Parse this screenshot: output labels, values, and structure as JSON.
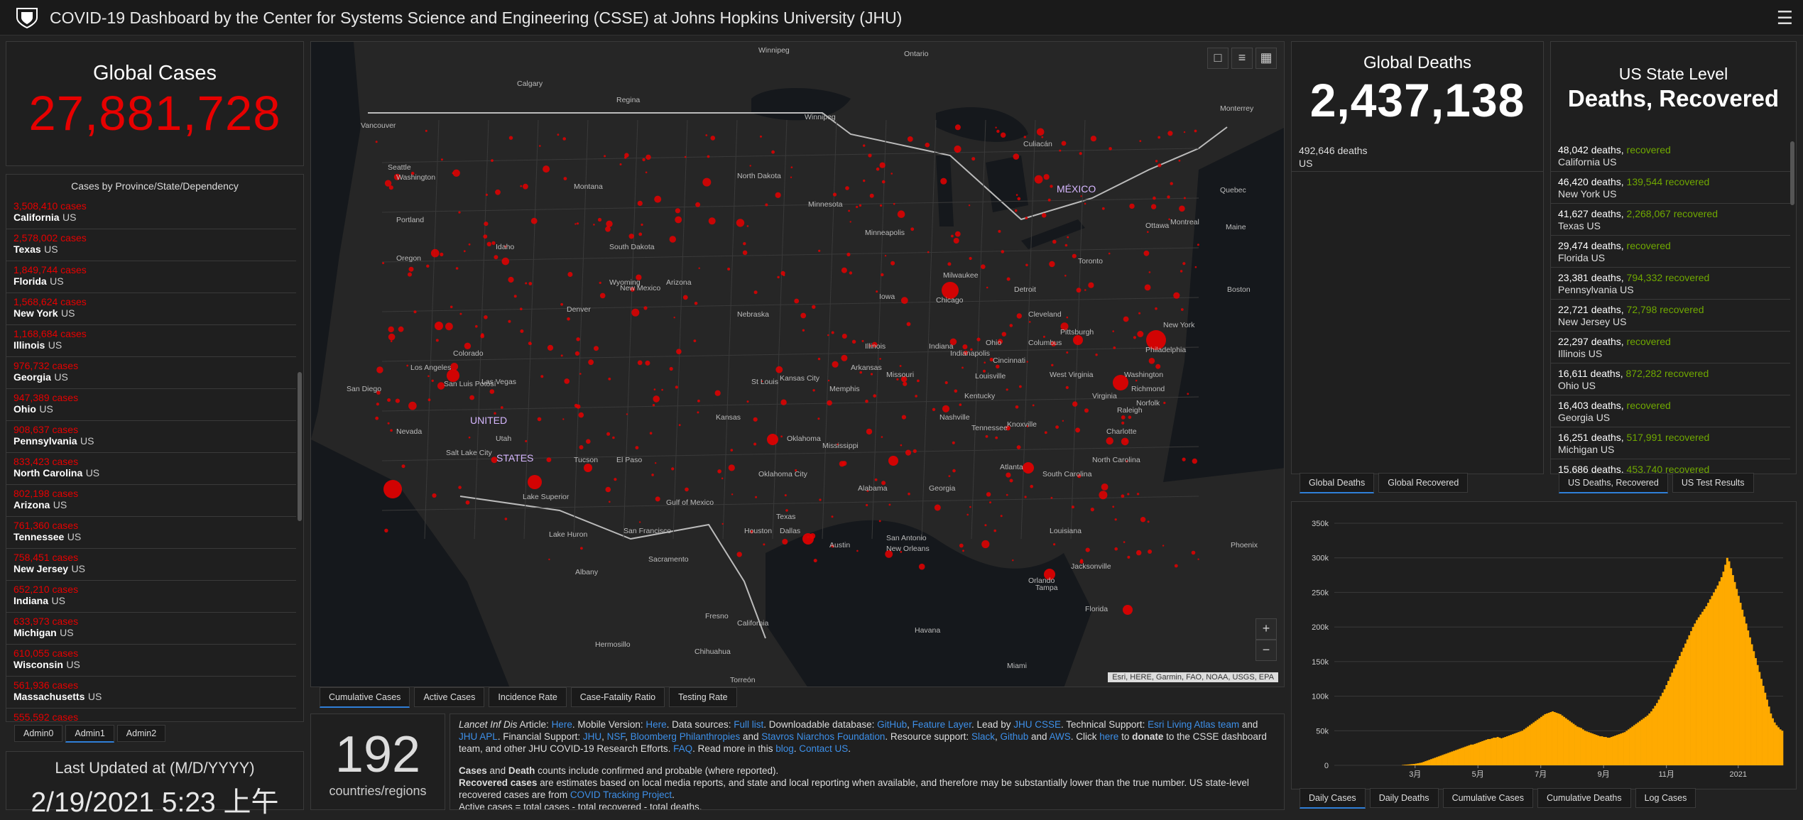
{
  "header": {
    "title": "COVID-19 Dashboard by the Center for Systems Science and Engineering (CSSE) at Johns Hopkins University (JHU)"
  },
  "global_cases": {
    "label": "Global Cases",
    "value": "27,881,728"
  },
  "cases_list": {
    "header": "Cases by Province/State/Dependency",
    "rows": [
      {
        "cases": "3,508,410 cases",
        "place": "California",
        "country": "US"
      },
      {
        "cases": "2,578,002 cases",
        "place": "Texas",
        "country": "US"
      },
      {
        "cases": "1,849,744 cases",
        "place": "Florida",
        "country": "US"
      },
      {
        "cases": "1,568,624 cases",
        "place": "New York",
        "country": "US"
      },
      {
        "cases": "1,168,684 cases",
        "place": "Illinois",
        "country": "US"
      },
      {
        "cases": "976,732 cases",
        "place": "Georgia",
        "country": "US"
      },
      {
        "cases": "947,389 cases",
        "place": "Ohio",
        "country": "US"
      },
      {
        "cases": "908,637 cases",
        "place": "Pennsylvania",
        "country": "US"
      },
      {
        "cases": "833,423 cases",
        "place": "North Carolina",
        "country": "US"
      },
      {
        "cases": "802,198 cases",
        "place": "Arizona",
        "country": "US"
      },
      {
        "cases": "761,360 cases",
        "place": "Tennessee",
        "country": "US"
      },
      {
        "cases": "758,451 cases",
        "place": "New Jersey",
        "country": "US"
      },
      {
        "cases": "652,210 cases",
        "place": "Indiana",
        "country": "US"
      },
      {
        "cases": "633,973 cases",
        "place": "Michigan",
        "country": "US"
      },
      {
        "cases": "610,055 cases",
        "place": "Wisconsin",
        "country": "US"
      },
      {
        "cases": "561,936 cases",
        "place": "Massachusetts",
        "country": "US"
      },
      {
        "cases": "555,592 cases",
        "place": "",
        "country": ""
      }
    ]
  },
  "admin_tabs": [
    "Admin0",
    "Admin1",
    "Admin2"
  ],
  "last_updated": {
    "label": "Last Updated at (M/D/YYYY)",
    "value": "2/19/2021 5:23 上午"
  },
  "map": {
    "tabs": [
      "Cumulative Cases",
      "Active Cases",
      "Incidence Rate",
      "Case-Fatality Ratio",
      "Testing Rate"
    ],
    "attribution": "Esri, HERE, Garmin, FAO, NOAA, USGS, EPA",
    "zoom_in": "+",
    "zoom_out": "−",
    "labels": [
      "Winnipeg",
      "Ontario",
      "Calgary",
      "Regina",
      "Winnipeg",
      "Vancouver",
      "Seattle",
      "Washington",
      "Portland",
      "Oregon",
      "Idaho",
      "Montana",
      "North Dakota",
      "Minnesota",
      "South Dakota",
      "Wyoming",
      "Nebraska",
      "Iowa",
      "Minneapolis",
      "Milwaukee",
      "Chicago",
      "Detroit",
      "Cleveland",
      "Toronto",
      "Ottawa",
      "Montreal",
      "Quebec",
      "Maine",
      "Boston",
      "New York",
      "Philadelphia",
      "Pittsburgh",
      "Washington",
      "Richmond",
      "Norfolk",
      "Virginia",
      "West Virginia",
      "Ohio",
      "Indiana",
      "Illinois",
      "Indianapolis",
      "Cincinnati",
      "Columbus",
      "Kentucky",
      "Louisville",
      "Nashville",
      "Knoxville",
      "Charlotte",
      "Raleigh",
      "Tennessee",
      "North Carolina",
      "South Carolina",
      "Atlanta",
      "Georgia",
      "Alabama",
      "Mississippi",
      "Memphis",
      "Arkansas",
      "Missouri",
      "St Louis",
      "Kansas City",
      "Kansas",
      "Oklahoma",
      "Oklahoma City",
      "Texas",
      "Dallas",
      "Austin",
      "Houston",
      "San Antonio",
      "New Orleans",
      "Louisiana",
      "Jacksonville",
      "Orlando",
      "Tampa",
      "Florida",
      "Miami",
      "Havana",
      "Gulf of Mexico",
      "El Paso",
      "Tucson",
      "Phoenix",
      "Arizona",
      "New Mexico",
      "Denver",
      "Colorado",
      "Utah",
      "Salt Lake City",
      "Nevada",
      "Las Vegas",
      "Los Angeles",
      "San Diego",
      "San Francisco",
      "Sacramento",
      "Fresno",
      "California",
      "Hermosillo",
      "Chihuahua",
      "Torreón",
      "Monterrey",
      "Culiacán",
      "MÉXICO",
      "San Luis Potosí",
      "UNITED",
      "STATES",
      "Lake Superior",
      "Lake Huron",
      "Albany"
    ]
  },
  "country_count": {
    "value": "192",
    "label": "countries/regions"
  },
  "info": {
    "p1": {
      "lancet_prefix": "Lancet Inf Dis",
      "article": " Article: ",
      "here1": "Here",
      "mobile": ". Mobile Version: ",
      "here2": "Here",
      "sources": ". Data sources: ",
      "full_list": "Full list",
      "downloadable": ". Downloadable database: ",
      "github": "GitHub",
      "comma": ", ",
      "feature_layer": "Feature Layer",
      "lead": ". Lead by ",
      "jhu_csse": "JHU CSSE",
      "tech": ". Technical Support: ",
      "esri": "Esri Living Atlas team",
      "and1": " and ",
      "jhu_apl": "JHU APL",
      "fin": ". Financial Support: ",
      "jhu": "JHU",
      "nsf": "NSF",
      "bloomberg": "Bloomberg Philanthropies",
      "and2": " and ",
      "stavros": "Stavros Niarchos Foundation",
      "resource": ". Resource support: ",
      "slack": "Slack",
      "github2": "Github",
      "and3": " and ",
      "aws": "AWS",
      "click": ". Click ",
      "here3": "here",
      "to": " to ",
      "donate": "donate",
      "rest": " to the CSSE dashboard team, and other JHU COVID-19 Research Efforts. ",
      "faq": "FAQ",
      "readmore": ". Read more in this ",
      "blog": "blog",
      "dot": ". ",
      "contact": "Contact US",
      "end": "."
    },
    "p2_cases": "Cases",
    "p2_and": " and ",
    "p2_death": "Death",
    "p2_rest": " counts include confirmed and probable (where reported).",
    "p3_recovered": "Recovered cases",
    "p3_rest": " are estimates based on local media reports, and state and local reporting when available, and therefore may be substantially lower than the true number. US state-level recovered cases are from ",
    "p3_link": "COVID Tracking Project",
    "p3_end": ".",
    "p4": "Active cases = total cases - total recovered - total deaths."
  },
  "global_deaths": {
    "label": "Global Deaths",
    "value": "2,437,138",
    "sub_value": "492,646 deaths",
    "sub_country": "US"
  },
  "death_tabs": [
    "Global Deaths",
    "Global Recovered"
  ],
  "us_state": {
    "title1": "US State Level",
    "title2": "Deaths, Recovered",
    "rows": [
      {
        "deaths": "48,042 deaths,",
        "recovered_value": "",
        "recovered": "recovered",
        "place": "California US"
      },
      {
        "deaths": "46,420 deaths,",
        "recovered_value": "139,544",
        "recovered": "recovered",
        "place": "New York US"
      },
      {
        "deaths": "41,627 deaths,",
        "recovered_value": "2,268,067",
        "recovered": "recovered",
        "place": "Texas US"
      },
      {
        "deaths": "29,474 deaths,",
        "recovered_value": "",
        "recovered": "recovered",
        "place": "Florida US"
      },
      {
        "deaths": "23,381 deaths,",
        "recovered_value": "794,332",
        "recovered": "recovered",
        "place": "Pennsylvania US"
      },
      {
        "deaths": "22,721 deaths,",
        "recovered_value": "72,798",
        "recovered": "recovered",
        "place": "New Jersey US"
      },
      {
        "deaths": "22,297 deaths,",
        "recovered_value": "",
        "recovered": "recovered",
        "place": "Illinois US"
      },
      {
        "deaths": "16,611 deaths,",
        "recovered_value": "872,282",
        "recovered": "recovered",
        "place": "Ohio US"
      },
      {
        "deaths": "16,403 deaths,",
        "recovered_value": "",
        "recovered": "recovered",
        "place": "Georgia US"
      },
      {
        "deaths": "16,251 deaths,",
        "recovered_value": "517,991",
        "recovered": "recovered",
        "place": "Michigan US"
      },
      {
        "deaths": "15,686 deaths,",
        "recovered_value": "453,740",
        "recovered": "recovered",
        "place": ""
      }
    ]
  },
  "us_tabs": [
    "US Deaths, Recovered",
    "US Test Results"
  ],
  "chart_tabs": [
    "Daily Cases",
    "Daily Deaths",
    "Cumulative Cases",
    "Cumulative Deaths",
    "Log Cases"
  ],
  "colors": {
    "cases_red": "#e60000",
    "recovered_green": "#70a800",
    "bar_orange": "#ffaa00",
    "link_blue": "#3d8fe8",
    "background": "#222222"
  },
  "chart_data": {
    "type": "bar",
    "title": "",
    "xlabel": "",
    "ylabel": "",
    "ylim": [
      0,
      350000
    ],
    "yticks": [
      "0",
      "50k",
      "100k",
      "150k",
      "200k",
      "250k",
      "300k",
      "350k"
    ],
    "xticks": [
      "3月",
      "5月",
      "7月",
      "9月",
      "11月",
      "2021"
    ],
    "series": [
      {
        "values": [
          500,
          800,
          1000,
          1200,
          1500,
          1800,
          2000,
          2500,
          3000,
          3500,
          4000,
          5000,
          6000,
          7000,
          8000,
          9000,
          10000,
          11000,
          12000,
          13000,
          14000,
          15000,
          16000,
          17000,
          18000,
          19000,
          20000,
          21000,
          22000,
          23000,
          24000,
          25000,
          26000,
          27000,
          28000,
          29000,
          30000,
          30000,
          31000,
          32000,
          33000,
          34000,
          35000,
          36000,
          37000,
          38000,
          38000,
          39000,
          40000,
          40000,
          41000,
          40000,
          39000,
          40000,
          41000,
          42000,
          43000,
          44000,
          45000,
          46000,
          47000,
          48000,
          49000,
          50000,
          52000,
          54000,
          56000,
          58000,
          60000,
          62000,
          64000,
          66000,
          68000,
          70000,
          72000,
          74000,
          75000,
          76000,
          77000,
          78000,
          77000,
          76000,
          75000,
          74000,
          72000,
          70000,
          68000,
          66000,
          64000,
          62000,
          60000,
          58000,
          56000,
          55000,
          54000,
          52000,
          50000,
          49000,
          48000,
          47000,
          46000,
          45000,
          44000,
          43000,
          42000,
          42000,
          41000,
          41000,
          40000,
          40000,
          41000,
          42000,
          43000,
          44000,
          45000,
          46000,
          47000,
          48000,
          50000,
          52000,
          54000,
          56000,
          58000,
          60000,
          62000,
          64000,
          66000,
          68000,
          70000,
          72000,
          75000,
          78000,
          82000,
          86000,
          90000,
          95000,
          100000,
          105000,
          110000,
          116000,
          122000,
          128000,
          134000,
          140000,
          146000,
          152000,
          158000,
          164000,
          170000,
          176000,
          182000,
          188000,
          194000,
          200000,
          205000,
          210000,
          214000,
          218000,
          222000,
          226000,
          230000,
          235000,
          240000,
          245000,
          250000,
          255000,
          260000,
          266000,
          272000,
          280000,
          290000,
          300000,
          295000,
          285000,
          275000,
          265000,
          255000,
          245000,
          235000,
          225000,
          215000,
          205000,
          195000,
          185000,
          175000,
          165000,
          155000,
          145000,
          135000,
          125000,
          115000,
          105000,
          95000,
          85000,
          75000,
          68000,
          62000,
          58000,
          55000,
          52000,
          50000
        ]
      }
    ]
  }
}
